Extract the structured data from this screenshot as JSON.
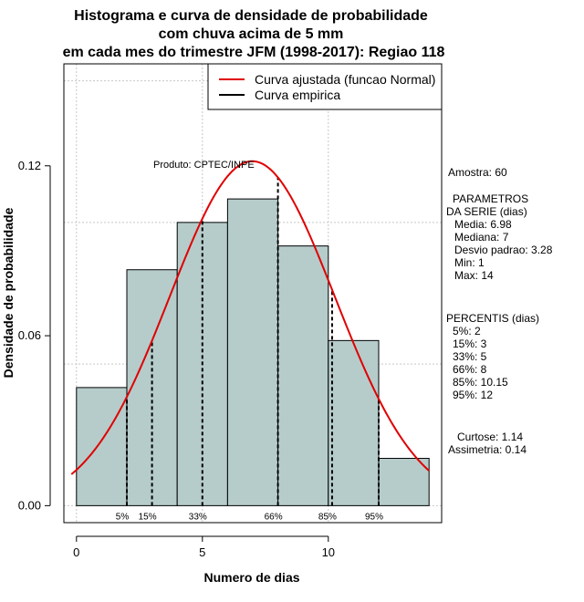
{
  "chart_data": {
    "type": "bar",
    "title_lines": [
      "Histograma e curva de densidade de probabilidade",
      "com chuva acima de 5 mm",
      "em cada mes do trimestre JFM (1998-2017): Regiao 118"
    ],
    "xlabel": "Numero de dias",
    "ylabel": "Densidade de probabilidade",
    "xlim": [
      -0.5,
      14.5
    ],
    "ylim": [
      -0.006,
      0.156
    ],
    "x_ticks": [
      0,
      5,
      10
    ],
    "x_tick_labels": [
      "0",
      "5",
      "10"
    ],
    "y_ticks": [
      0.0,
      0.06,
      0.12
    ],
    "y_tick_labels": [
      "0.00",
      "0.06",
      "0.12"
    ],
    "grid": true,
    "grid_x": [
      0,
      5,
      10
    ],
    "grid_y": [
      0.0,
      0.05,
      0.1,
      0.15
    ],
    "bins": [
      {
        "x0": 0,
        "x1": 2,
        "density": 0.0417
      },
      {
        "x0": 2,
        "x1": 4,
        "density": 0.0833
      },
      {
        "x0": 4,
        "x1": 6,
        "density": 0.1
      },
      {
        "x0": 6,
        "x1": 8,
        "density": 0.1083
      },
      {
        "x0": 8,
        "x1": 10,
        "density": 0.0917
      },
      {
        "x0": 10,
        "x1": 12,
        "density": 0.0583
      },
      {
        "x0": 12,
        "x1": 14,
        "density": 0.0167
      }
    ],
    "bar_fill": "#b5cccb",
    "curve": {
      "type": "normal",
      "mean": 6.98,
      "sd": 3.28,
      "xrange": [
        -0.2,
        14
      ],
      "color": "#e00000"
    },
    "empirical_percentile_lines": [
      {
        "label": "5%",
        "x": 2
      },
      {
        "label": "15%",
        "x": 3
      },
      {
        "label": "33%",
        "x": 5
      },
      {
        "label": "66%",
        "x": 8
      },
      {
        "label": "85%",
        "x": 10.15
      },
      {
        "label": "95%",
        "x": 12
      }
    ],
    "legend": {
      "placement": "top-right",
      "entries": [
        {
          "label": "Curva ajustada (funcao Normal)",
          "color": "#e00000"
        },
        {
          "label": "Curva empirica",
          "color": "#000000"
        }
      ]
    },
    "annotation": "Produto: CPTEC/INPE"
  },
  "side_panel": {
    "amostra": "Amostra: 60",
    "param_header_1": "PARAMETROS",
    "param_header_2": "DA SERIE (dias)",
    "media": "Media: 6.98",
    "mediana": "Mediana: 7",
    "desvio": "Desvio padrao: 3.28",
    "min": "Min: 1",
    "max": "Max: 14",
    "pct_header": "PERCENTIS (dias)",
    "p5": "5%: 2",
    "p15": "15%: 3",
    "p33": "33%: 5",
    "p66": "66%: 8",
    "p85": "85%: 10.15",
    "p95": "95%: 12",
    "curtose": "Curtose: 1.14",
    "assimetria": "Assimetria: 0.14"
  }
}
